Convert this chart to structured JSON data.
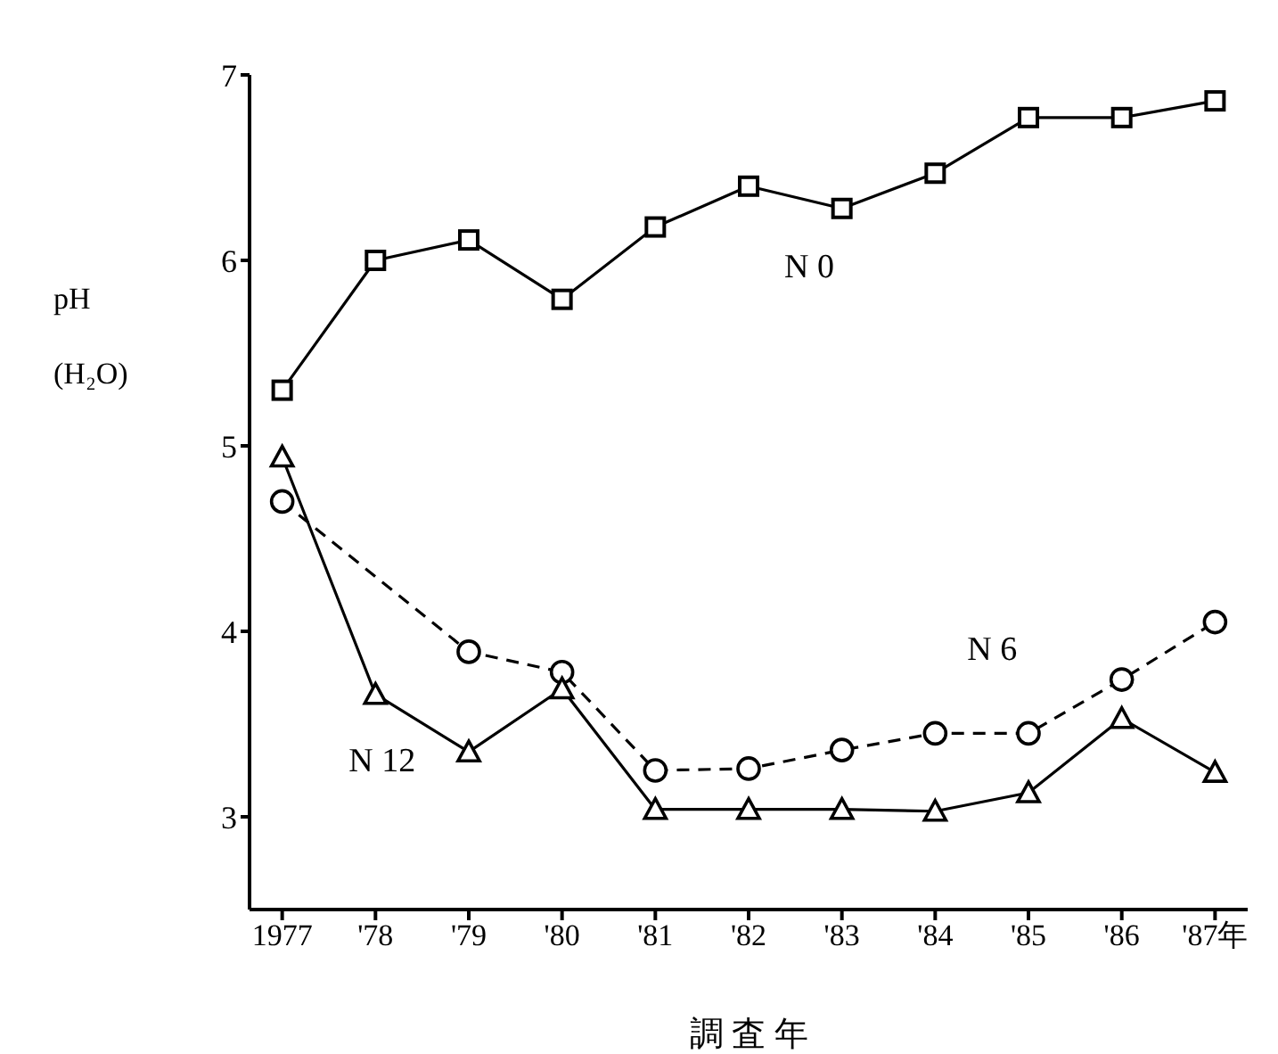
{
  "chart_data": {
    "type": "line",
    "xlabel": "調 査 年",
    "ylabel": "pH\n(H₂O)",
    "categories": [
      "1977",
      "'78",
      "'79",
      "'80",
      "'81",
      "'82",
      "'83",
      "'84",
      "'85",
      "'86",
      "'87年"
    ],
    "ylim": [
      2.5,
      7
    ],
    "yticks": [
      3,
      4,
      5,
      6,
      7
    ],
    "grid": false,
    "legend": false,
    "series": [
      {
        "name": "N 0",
        "color": "#000000",
        "marker": "square",
        "line_style": "solid",
        "values": [
          5.3,
          6.0,
          6.11,
          5.79,
          6.18,
          6.4,
          6.28,
          6.47,
          6.77,
          6.77,
          6.86
        ]
      },
      {
        "name": "N 6",
        "color": "#000000",
        "marker": "circle",
        "line_style": "dashed",
        "values": [
          4.7,
          null,
          3.89,
          3.78,
          3.25,
          3.26,
          3.36,
          3.45,
          3.45,
          3.74,
          4.05
        ]
      },
      {
        "name": "N 12",
        "color": "#000000",
        "marker": "triangle",
        "line_style": "solid",
        "values": [
          4.94,
          3.66,
          3.35,
          3.69,
          3.04,
          3.04,
          3.04,
          3.03,
          3.13,
          3.53,
          3.24
        ]
      }
    ]
  }
}
